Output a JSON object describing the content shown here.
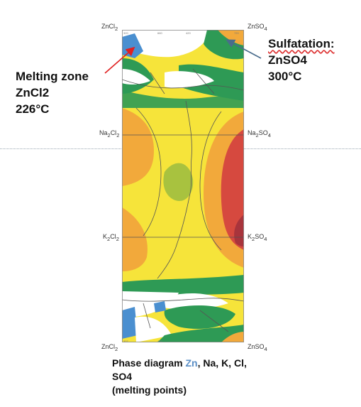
{
  "corners": {
    "top_left": "ZnCl",
    "top_left_sub": "2",
    "top_right": "ZnSO",
    "top_right_sub": "4",
    "mid1_left": "Na",
    "mid1_left_sub": "2",
    "mid1_left_rest": "Cl",
    "mid1_left_sub2": "2",
    "mid1_right": "Na",
    "mid1_right_sub": "2",
    "mid1_right_rest": "SO",
    "mid1_right_sub2": "4",
    "mid2_left": "K",
    "mid2_left_sub": "2",
    "mid2_left_rest": "Cl",
    "mid2_left_sub2": "2",
    "mid2_right": "K",
    "mid2_right_sub": "2",
    "mid2_right_rest": "SO",
    "mid2_right_sub2": "4",
    "bottom_left": "ZnCl",
    "bottom_left_sub": "2",
    "bottom_right": "ZnSO",
    "bottom_right_sub": "4"
  },
  "annotations": {
    "melting": {
      "line1": "Melting zone",
      "line2": "ZnCl2",
      "line3": "226°C",
      "arrow_color": "#e02020"
    },
    "sulfatation": {
      "line1": "Sulfatation:",
      "line2": "ZnSO4",
      "line3": "300°C",
      "arrow_color": "#4a6c8c"
    }
  },
  "caption": {
    "prefix": "Phase diagram ",
    "zn": "Zn",
    "rest": ", Na, K, Cl,",
    "line2": "SO4",
    "line3": "(melting points)"
  },
  "colors": {
    "yellow": "#f6e43a",
    "orange": "#f2a93b",
    "green": "#2e9a55",
    "olive": "#a8c23f",
    "red": "#d6493f",
    "crimson": "#a8343c",
    "blue": "#4a8fd0",
    "white": "#ffffff"
  }
}
